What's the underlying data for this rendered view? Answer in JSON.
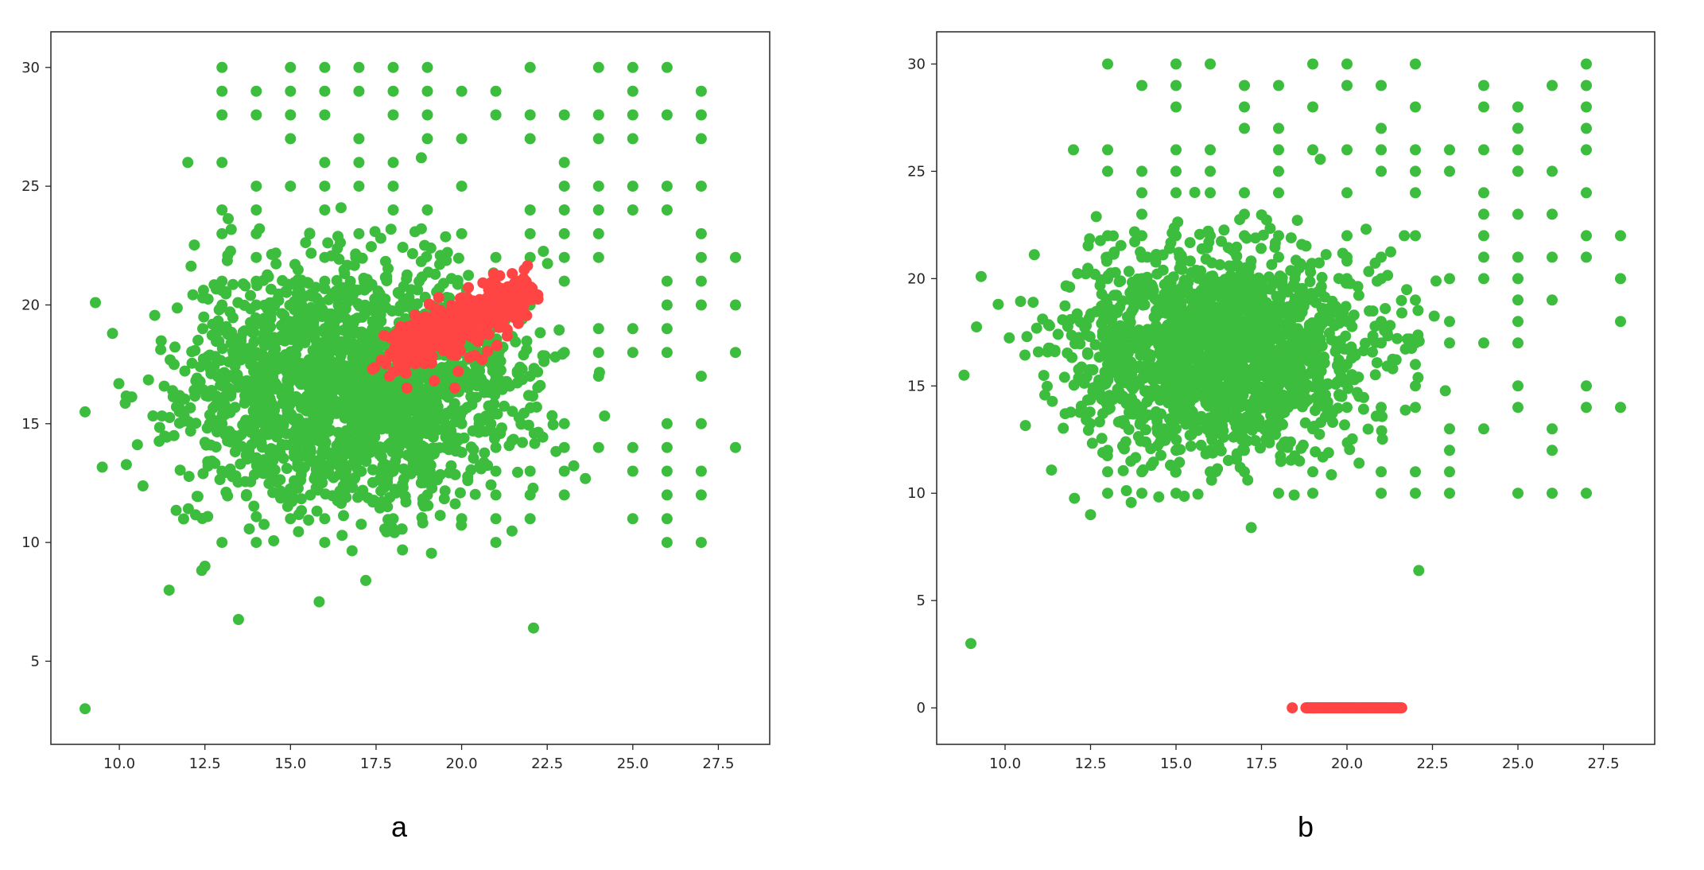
{
  "colors": {
    "green": "#3dbd3d",
    "red": "#ff4444",
    "axes": "#262626"
  },
  "chart_data": [
    {
      "type": "scatter",
      "caption": "a",
      "xlim": [
        8.0,
        29.0
      ],
      "ylim": [
        1.5,
        31.5
      ],
      "xticks": [
        "10.0",
        "12.5",
        "15.0",
        "17.5",
        "20.0",
        "22.5",
        "25.0",
        "27.5"
      ],
      "xtick_values": [
        10.0,
        12.5,
        15.0,
        17.5,
        20.0,
        22.5,
        25.0,
        27.5
      ],
      "yticks": [
        "5",
        "10",
        "15",
        "20",
        "25",
        "30"
      ],
      "ytick_values": [
        5,
        10,
        15,
        20,
        25,
        30
      ],
      "grid": false,
      "series": [
        {
          "color": "#3dbd3d",
          "clusters": [
            {
              "cx": 16.0,
              "cy": 16.5,
              "sx": 2.1,
              "sy": 2.6,
              "n": 1500
            },
            {
              "cx": 19.2,
              "cy": 16.8,
              "sx": 1.7,
              "sy": 2.2,
              "n": 500
            }
          ],
          "lattice": {
            "x_from": 13,
            "x_to": 27,
            "x_step": 1,
            "y_from": 10,
            "y_to": 30,
            "y_step": 1
          },
          "points": [
            [
              9.0,
              3.0
            ],
            [
              22.1,
              6.4
            ],
            [
              9.0,
              15.5
            ],
            [
              9.3,
              20.1
            ],
            [
              9.8,
              18.8
            ],
            [
              28.0,
              22.0
            ],
            [
              28.0,
              20.0
            ],
            [
              28.0,
              18.0
            ],
            [
              28.0,
              14.0
            ],
            [
              12.5,
              9.0
            ],
            [
              17.2,
              8.4
            ],
            [
              12.0,
              26.0
            ],
            [
              25.0,
              28.0
            ]
          ]
        },
        {
          "color": "#ff4444",
          "band": {
            "x_start": 18.0,
            "x_end": 21.8,
            "y_start": 18.0,
            "y_end": 20.5,
            "spread": 0.55,
            "n": 420
          },
          "points": [
            [
              17.4,
              17.3
            ],
            [
              18.4,
              16.5
            ],
            [
              19.2,
              16.8
            ],
            [
              19.8,
              16.5
            ],
            [
              20.6,
              17.7
            ],
            [
              19.9,
              17.2
            ]
          ]
        }
      ]
    },
    {
      "type": "scatter",
      "caption": "b",
      "xlim": [
        8.0,
        29.0
      ],
      "ylim": [
        -1.7,
        31.5
      ],
      "xticks": [
        "10.0",
        "12.5",
        "15.0",
        "17.5",
        "20.0",
        "22.5",
        "25.0",
        "27.5"
      ],
      "xtick_values": [
        10.0,
        12.5,
        15.0,
        17.5,
        20.0,
        22.5,
        25.0,
        27.5
      ],
      "yticks": [
        "0",
        "5",
        "10",
        "15",
        "20",
        "25",
        "30"
      ],
      "ytick_values": [
        0,
        5,
        10,
        15,
        20,
        25,
        30
      ],
      "grid": false,
      "series": [
        {
          "color": "#3dbd3d",
          "clusters": [
            {
              "cx": 16.3,
              "cy": 16.6,
              "sx": 2.1,
              "sy": 2.4,
              "n": 1700
            }
          ],
          "lattice": {
            "x_from": 13,
            "x_to": 27,
            "x_step": 1,
            "y_from": 10,
            "y_to": 30,
            "y_step": 1
          },
          "points": [
            [
              9.0,
              3.0
            ],
            [
              22.1,
              6.4
            ],
            [
              8.8,
              15.5
            ],
            [
              9.3,
              20.1
            ],
            [
              9.8,
              18.8
            ],
            [
              28.0,
              22.0
            ],
            [
              28.0,
              20.0
            ],
            [
              28.0,
              18.0
            ],
            [
              28.0,
              14.0
            ],
            [
              12.5,
              9.0
            ],
            [
              17.2,
              8.4
            ],
            [
              12.0,
              26.0
            ],
            [
              25.0,
              28.0
            ]
          ]
        },
        {
          "color": "#ff4444",
          "strip": {
            "x_start": 18.8,
            "x_end": 21.6,
            "y": 0.0,
            "n": 120
          },
          "points": [
            [
              18.4,
              0.0
            ]
          ]
        }
      ]
    }
  ]
}
